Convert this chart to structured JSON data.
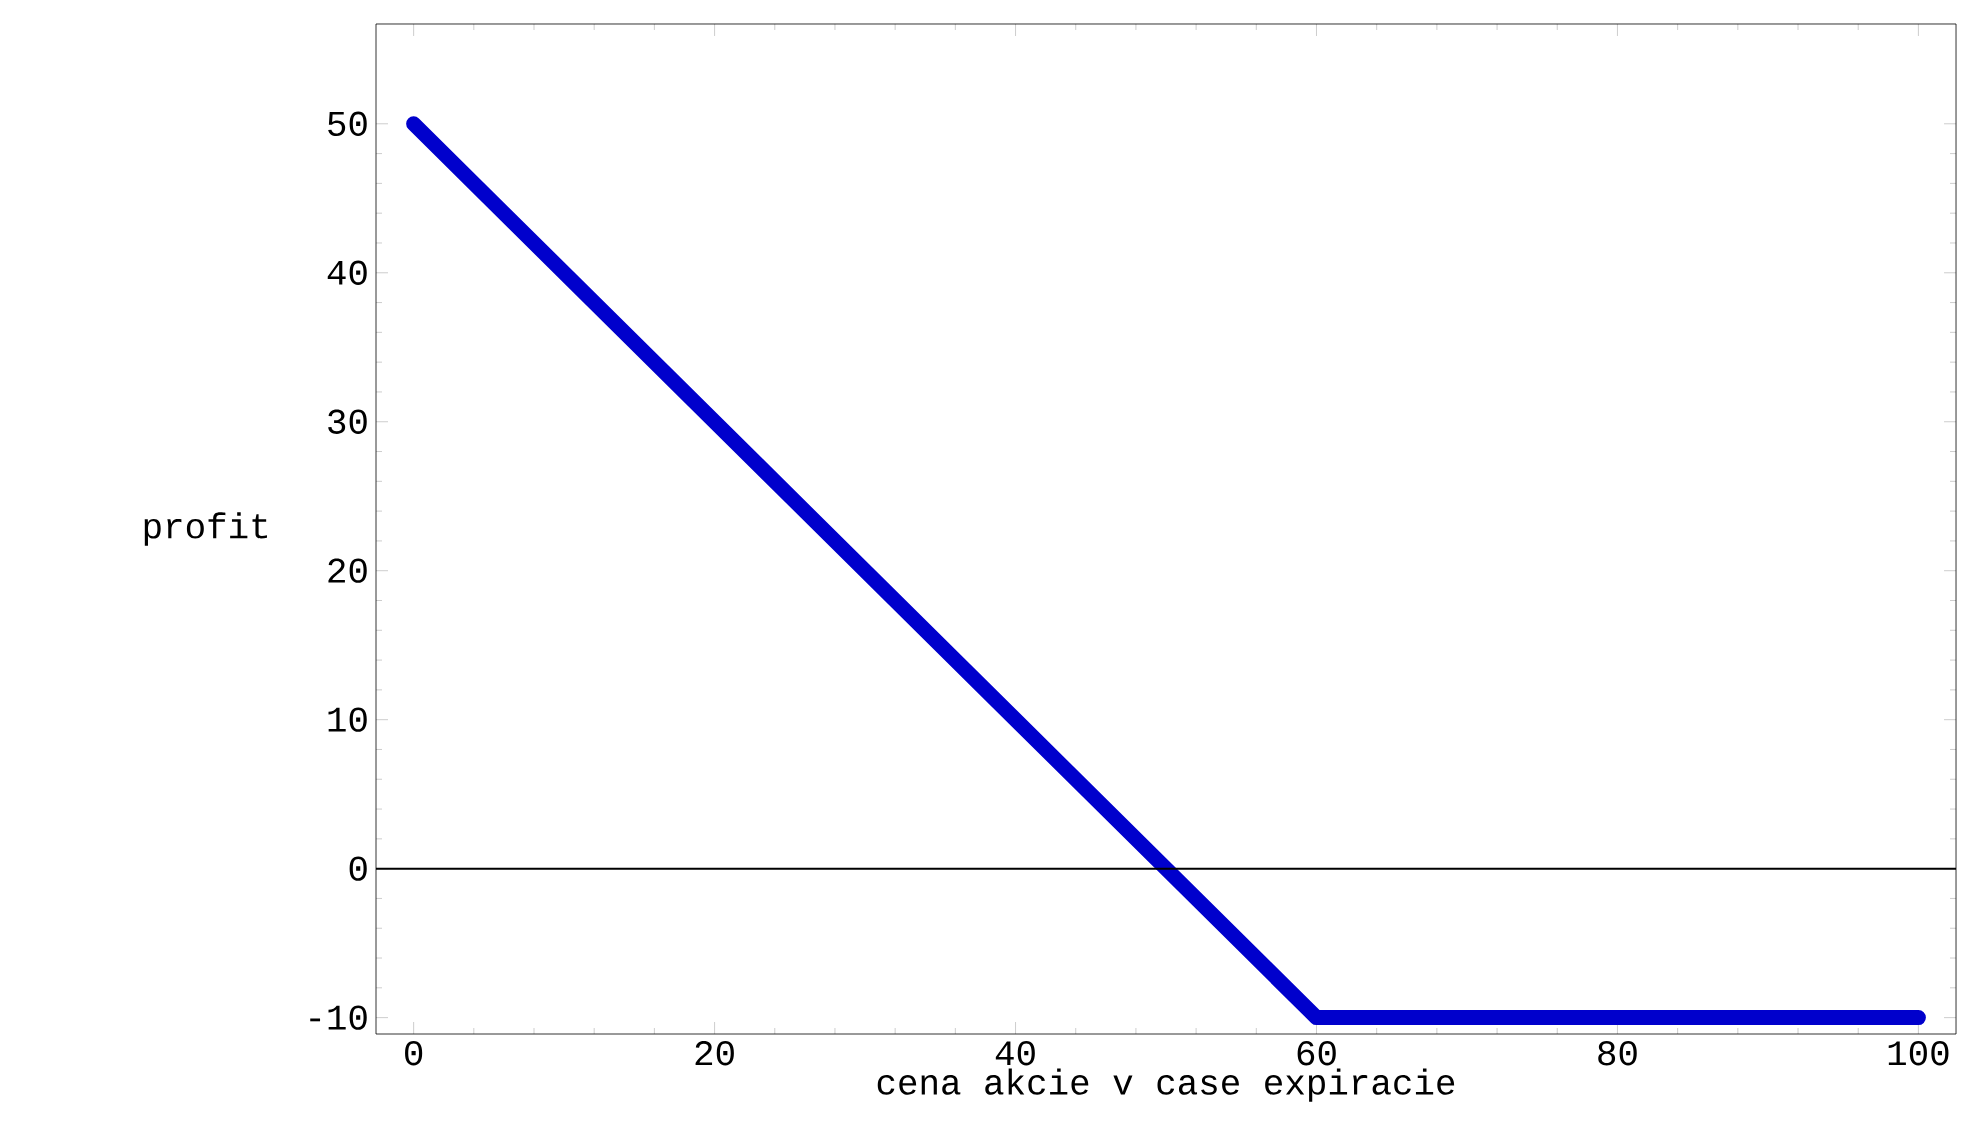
{
  "chart_data": {
    "type": "line",
    "xlabel": "cena akcie v case expiracie",
    "ylabel": "profit",
    "x": [
      0,
      60,
      100
    ],
    "series": [
      {
        "color": "#0000cc",
        "values": [
          50,
          -10,
          -10
        ]
      }
    ],
    "xlim": [
      -2.5,
      102.5
    ],
    "ylim": [
      -11.1,
      56.7
    ],
    "xticks": [
      0,
      20,
      40,
      60,
      80,
      100
    ],
    "yticks": [
      -10,
      0,
      10,
      20,
      30,
      40,
      50
    ],
    "ref_lines": [
      {
        "axis": "y",
        "value": 0,
        "color": "#000000"
      }
    ]
  }
}
